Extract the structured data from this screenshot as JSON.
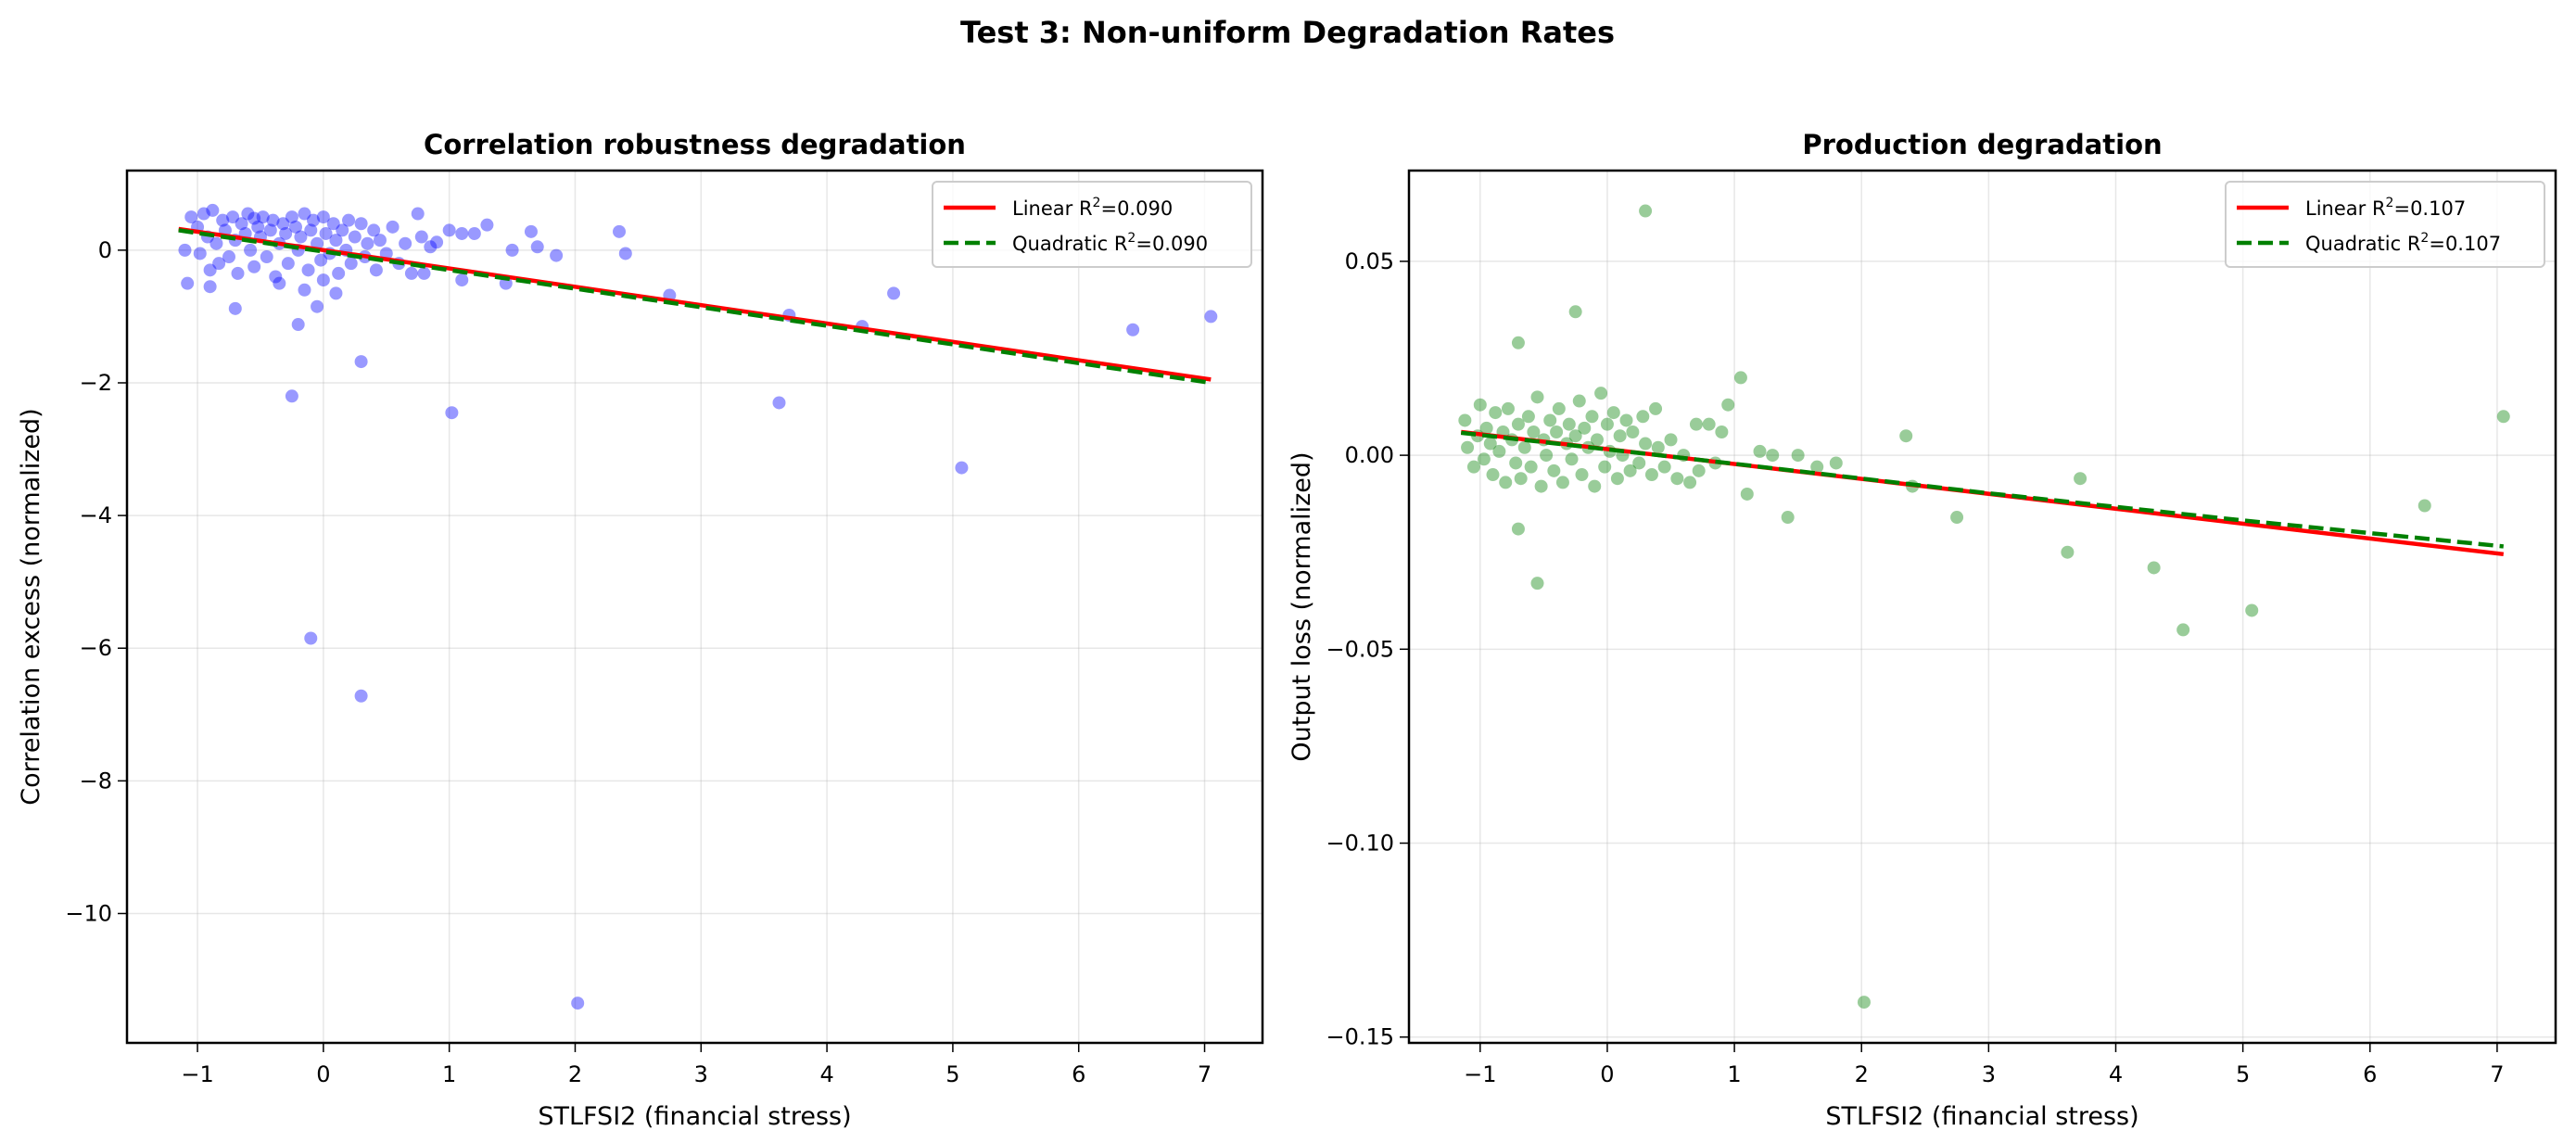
{
  "title": "Test 3: Non-uniform Degradation Rates",
  "chart_data": [
    {
      "type": "scatter",
      "title": "Correlation robustness degradation",
      "xlabel": "STLFSI2 (financial stress)",
      "ylabel": "Correlation excess (normalized)",
      "xlim": [
        -1.56,
        7.46
      ],
      "ylim": [
        -11.95,
        1.2
      ],
      "xticks": [
        -1,
        0,
        1,
        2,
        3,
        4,
        5,
        6,
        7
      ],
      "xtick_labels": [
        "−1",
        "0",
        "1",
        "2",
        "3",
        "4",
        "5",
        "6",
        "7"
      ],
      "yticks": [
        0,
        -2,
        -4,
        -6,
        -8,
        -10
      ],
      "ytick_labels": [
        "0",
        "−2",
        "−4",
        "−6",
        "−8",
        "−10"
      ],
      "grid": true,
      "legend_position": "top-right",
      "point_color": "#0000ff",
      "points": [
        [
          -1.1,
          0.0
        ],
        [
          -1.05,
          0.5
        ],
        [
          -1.0,
          0.35
        ],
        [
          -0.98,
          -0.05
        ],
        [
          -0.95,
          0.55
        ],
        [
          -0.92,
          0.2
        ],
        [
          -0.9,
          -0.3
        ],
        [
          -0.88,
          0.6
        ],
        [
          -0.85,
          0.1
        ],
        [
          -0.83,
          -0.2
        ],
        [
          -0.8,
          0.45
        ],
        [
          -0.78,
          0.3
        ],
        [
          -0.75,
          -0.1
        ],
        [
          -0.72,
          0.5
        ],
        [
          -0.7,
          0.15
        ],
        [
          -0.68,
          -0.35
        ],
        [
          -0.65,
          0.4
        ],
        [
          -0.62,
          0.25
        ],
        [
          -0.6,
          0.55
        ],
        [
          -0.58,
          0.0
        ],
        [
          -0.55,
          -0.25
        ],
        [
          -0.52,
          0.35
        ],
        [
          -0.5,
          0.2
        ],
        [
          -0.48,
          0.5
        ],
        [
          -0.45,
          -0.1
        ],
        [
          -0.42,
          0.3
        ],
        [
          -0.4,
          0.45
        ],
        [
          -0.38,
          -0.4
        ],
        [
          -0.35,
          0.1
        ],
        [
          -0.32,
          0.4
        ],
        [
          -0.3,
          0.25
        ],
        [
          -0.28,
          -0.2
        ],
        [
          -0.25,
          0.5
        ],
        [
          -0.22,
          0.35
        ],
        [
          -0.2,
          0.0
        ],
        [
          -0.18,
          0.2
        ],
        [
          -0.15,
          0.55
        ],
        [
          -0.12,
          -0.3
        ],
        [
          -0.1,
          0.3
        ],
        [
          -0.08,
          0.45
        ],
        [
          -0.05,
          0.1
        ],
        [
          -0.02,
          -0.15
        ],
        [
          0.0,
          0.5
        ],
        [
          0.02,
          0.25
        ],
        [
          0.05,
          -0.05
        ],
        [
          0.08,
          0.4
        ],
        [
          0.1,
          0.15
        ],
        [
          0.12,
          -0.35
        ],
        [
          0.15,
          0.3
        ],
        [
          0.18,
          0.0
        ],
        [
          0.2,
          0.45
        ],
        [
          0.22,
          -0.2
        ],
        [
          0.25,
          0.2
        ],
        [
          0.3,
          0.4
        ],
        [
          0.33,
          -0.1
        ],
        [
          0.35,
          0.1
        ],
        [
          0.4,
          0.3
        ],
        [
          0.42,
          -0.3
        ],
        [
          0.45,
          0.15
        ],
        [
          0.5,
          -0.05
        ],
        [
          0.55,
          0.35
        ],
        [
          0.6,
          -0.2
        ],
        [
          0.65,
          0.1
        ],
        [
          0.7,
          -0.35
        ],
        [
          0.75,
          0.55
        ],
        [
          0.78,
          0.2
        ],
        [
          0.85,
          0.05
        ],
        [
          -1.08,
          -0.5
        ],
        [
          -0.9,
          -0.55
        ],
        [
          -0.55,
          0.48
        ],
        [
          -0.35,
          -0.5
        ],
        [
          -0.15,
          -0.6
        ],
        [
          0.0,
          -0.45
        ],
        [
          0.1,
          -0.65
        ],
        [
          -0.25,
          -2.2
        ],
        [
          0.3,
          -1.68
        ],
        [
          -0.1,
          -5.85
        ],
        [
          0.3,
          -6.72
        ],
        [
          1.02,
          -2.45
        ],
        [
          2.02,
          -11.35
        ],
        [
          3.62,
          -2.3
        ],
        [
          5.07,
          -3.28
        ],
        [
          3.7,
          -0.98
        ],
        [
          4.28,
          -1.15
        ],
        [
          4.53,
          -0.65
        ],
        [
          6.43,
          -1.2
        ],
        [
          7.05,
          -1.0
        ],
        [
          2.35,
          0.28
        ],
        [
          2.4,
          -0.05
        ],
        [
          2.75,
          -0.68
        ],
        [
          -0.2,
          -1.12
        ],
        [
          -0.7,
          -0.88
        ],
        [
          -0.05,
          -0.85
        ],
        [
          1.5,
          0.0
        ],
        [
          1.65,
          0.28
        ],
        [
          1.7,
          0.05
        ],
        [
          1.85,
          -0.08
        ],
        [
          1.3,
          0.38
        ],
        [
          1.45,
          -0.5
        ],
        [
          1.1,
          -0.45
        ],
        [
          0.8,
          -0.35
        ],
        [
          1.0,
          0.3
        ],
        [
          1.1,
          0.25
        ],
        [
          1.2,
          0.25
        ],
        [
          0.9,
          0.12
        ]
      ],
      "series": [
        {
          "name": "Linear R²=0.090",
          "label_main": "Linear R",
          "label_r2": "=0.090",
          "color": "#ff0000",
          "style": "solid",
          "x": [
            -1.15,
            7.05
          ],
          "y": [
            0.32,
            -1.95
          ]
        },
        {
          "name": "Quadratic R²=0.090",
          "label_main": "Quadratic R",
          "label_r2": "=0.090",
          "color": "#008000",
          "style": "dashed",
          "x": [
            -1.15,
            1,
            3,
            5,
            7.05
          ],
          "y": [
            0.3,
            -0.3,
            -0.86,
            -1.42,
            -2.0
          ]
        }
      ]
    },
    {
      "type": "scatter",
      "title": "Production degradation",
      "xlabel": "STLFSI2 (financial stress)",
      "ylabel": "Output loss (normalized)",
      "xlim": [
        -1.56,
        7.46
      ],
      "ylim": [
        -0.1515,
        0.0734
      ],
      "xticks": [
        -1,
        0,
        1,
        2,
        3,
        4,
        5,
        6,
        7
      ],
      "xtick_labels": [
        "−1",
        "0",
        "1",
        "2",
        "3",
        "4",
        "5",
        "6",
        "7"
      ],
      "yticks": [
        0.05,
        0,
        -0.05,
        -0.1,
        -0.15
      ],
      "ytick_labels": [
        "0.05",
        "0.00",
        "−0.05",
        "−0.10",
        "−0.15"
      ],
      "grid": true,
      "legend_position": "top-right",
      "point_color": "#008000",
      "points": [
        [
          -1.12,
          0.009
        ],
        [
          -1.1,
          0.002
        ],
        [
          -1.05,
          -0.003
        ],
        [
          -1.02,
          0.005
        ],
        [
          -1.0,
          0.013
        ],
        [
          -0.97,
          -0.001
        ],
        [
          -0.95,
          0.007
        ],
        [
          -0.92,
          0.003
        ],
        [
          -0.9,
          -0.005
        ],
        [
          -0.88,
          0.011
        ],
        [
          -0.85,
          0.001
        ],
        [
          -0.82,
          0.006
        ],
        [
          -0.8,
          -0.007
        ],
        [
          -0.78,
          0.012
        ],
        [
          -0.75,
          0.004
        ],
        [
          -0.72,
          -0.002
        ],
        [
          -0.7,
          0.008
        ],
        [
          -0.68,
          -0.006
        ],
        [
          -0.65,
          0.002
        ],
        [
          -0.62,
          0.01
        ],
        [
          -0.6,
          -0.003
        ],
        [
          -0.58,
          0.006
        ],
        [
          -0.55,
          0.015
        ],
        [
          -0.52,
          -0.008
        ],
        [
          -0.5,
          0.004
        ],
        [
          -0.48,
          0.0
        ],
        [
          -0.45,
          0.009
        ],
        [
          -0.42,
          -0.004
        ],
        [
          -0.4,
          0.006
        ],
        [
          -0.38,
          0.012
        ],
        [
          -0.35,
          -0.007
        ],
        [
          -0.32,
          0.003
        ],
        [
          -0.3,
          0.008
        ],
        [
          -0.28,
          -0.001
        ],
        [
          -0.25,
          0.005
        ],
        [
          -0.22,
          0.014
        ],
        [
          -0.2,
          -0.005
        ],
        [
          -0.18,
          0.007
        ],
        [
          -0.15,
          0.002
        ],
        [
          -0.12,
          0.01
        ],
        [
          -0.1,
          -0.008
        ],
        [
          -0.08,
          0.004
        ],
        [
          -0.05,
          0.016
        ],
        [
          -0.02,
          -0.003
        ],
        [
          0.0,
          0.008
        ],
        [
          0.02,
          0.001
        ],
        [
          0.05,
          0.011
        ],
        [
          0.08,
          -0.006
        ],
        [
          0.1,
          0.005
        ],
        [
          0.12,
          0.0
        ],
        [
          0.15,
          0.009
        ],
        [
          0.18,
          -0.004
        ],
        [
          0.2,
          0.006
        ],
        [
          0.25,
          -0.002
        ],
        [
          0.28,
          0.01
        ],
        [
          0.3,
          0.003
        ],
        [
          0.35,
          -0.005
        ],
        [
          0.38,
          0.012
        ],
        [
          0.4,
          0.002
        ],
        [
          0.45,
          -0.003
        ],
        [
          0.5,
          0.004
        ],
        [
          0.55,
          -0.006
        ],
        [
          0.6,
          0.0
        ],
        [
          0.65,
          -0.007
        ],
        [
          0.7,
          0.008
        ],
        [
          0.72,
          -0.004
        ],
        [
          0.8,
          0.008
        ],
        [
          0.85,
          -0.002
        ],
        [
          0.9,
          0.006
        ],
        [
          0.3,
          0.063
        ],
        [
          -0.25,
          0.037
        ],
        [
          -0.7,
          0.029
        ],
        [
          -0.7,
          -0.019
        ],
        [
          -0.55,
          -0.033
        ],
        [
          2.02,
          -0.141
        ],
        [
          3.62,
          -0.025
        ],
        [
          3.72,
          -0.006
        ],
        [
          4.3,
          -0.029
        ],
        [
          4.53,
          -0.045
        ],
        [
          5.07,
          -0.04
        ],
        [
          6.43,
          -0.013
        ],
        [
          7.05,
          0.01
        ],
        [
          2.35,
          0.005
        ],
        [
          2.75,
          -0.016
        ],
        [
          1.42,
          -0.016
        ],
        [
          1.05,
          0.02
        ],
        [
          1.1,
          -0.01
        ],
        [
          0.95,
          0.013
        ],
        [
          1.5,
          0.0
        ],
        [
          1.8,
          -0.002
        ],
        [
          2.4,
          -0.008
        ],
        [
          1.2,
          0.001
        ],
        [
          1.3,
          0.0
        ],
        [
          1.65,
          -0.003
        ]
      ],
      "series": [
        {
          "name": "Linear R²=0.107",
          "label_main": "Linear R",
          "label_r2": "=0.107",
          "color": "#ff0000",
          "style": "solid",
          "x": [
            -1.15,
            7.05
          ],
          "y": [
            0.006,
            -0.0255
          ]
        },
        {
          "name": "Quadratic R²=0.107",
          "label_main": "Quadratic R",
          "label_r2": "=0.107",
          "color": "#008000",
          "style": "dashed",
          "x": [
            -1.15,
            1,
            3,
            5,
            7.05
          ],
          "y": [
            0.0058,
            -0.0022,
            -0.0098,
            -0.0168,
            -0.0235
          ]
        }
      ]
    }
  ]
}
